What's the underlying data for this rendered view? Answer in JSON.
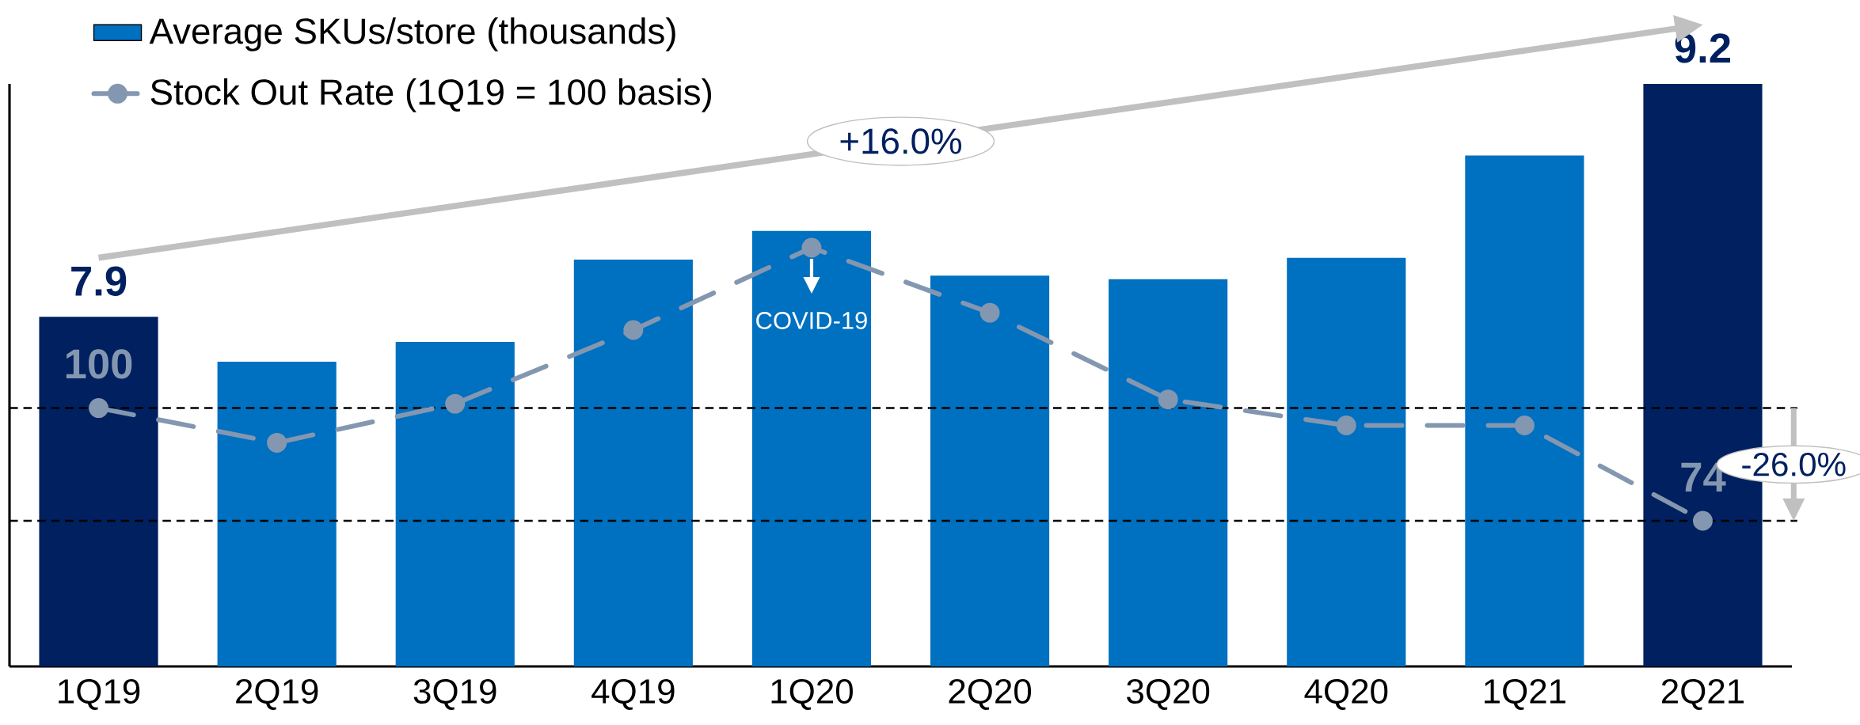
{
  "chart_data": {
    "type": "bar",
    "categories": [
      "1Q19",
      "2Q19",
      "3Q19",
      "4Q19",
      "1Q20",
      "2Q20",
      "3Q20",
      "4Q20",
      "1Q21",
      "2Q21"
    ],
    "series": [
      {
        "name": "Average SKUs/store (thousands)",
        "type": "bar",
        "color": "#0070c0",
        "colors": [
          "#002060",
          "#0070c0",
          "#0070c0",
          "#0070c0",
          "#0070c0",
          "#0070c0",
          "#0070c0",
          "#0070c0",
          "#0070c0",
          "#002060"
        ],
        "values": [
          7.9,
          7.65,
          7.76,
          8.22,
          8.38,
          8.13,
          8.11,
          8.23,
          8.8,
          9.2
        ],
        "value_labels": [
          "7.9",
          null,
          null,
          null,
          null,
          null,
          null,
          null,
          null,
          "9.2"
        ]
      },
      {
        "name": "Stock Out Rate (1Q19 = 100 basis)",
        "type": "line",
        "axis": "y2",
        "color": "#8497b0",
        "values": [
          100,
          92,
          101,
          118,
          137,
          122,
          102,
          96,
          96,
          74
        ],
        "value_labels": [
          "100",
          null,
          null,
          null,
          null,
          null,
          null,
          null,
          null,
          "74"
        ]
      }
    ],
    "ylim": [
      5.95,
      9.2
    ],
    "y2lim": [
      40.4,
      174.8
    ],
    "tick_labels": "x",
    "marker": "circle",
    "line_style": "dashed",
    "legend": "top left",
    "ref_lines": [
      {
        "axis": "y2",
        "value": 100,
        "color": "#000000",
        "line_style": "dashed"
      },
      {
        "axis": "y2",
        "value": 74,
        "color": "#000000",
        "line_style": "dashed"
      }
    ],
    "annotations": [
      "+16.0%",
      "COVID-19",
      "-26.0%"
    ]
  }
}
